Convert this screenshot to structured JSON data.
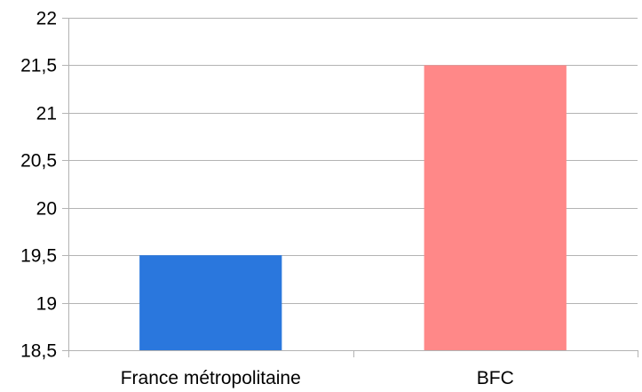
{
  "chart_data": {
    "type": "bar",
    "categories": [
      "France métropolitaine",
      "BFC"
    ],
    "values": [
      19.5,
      21.5
    ],
    "colors": [
      "#2a77dd",
      "#ff8888"
    ],
    "ylim": [
      18.5,
      22
    ],
    "yticks": [
      18.5,
      19,
      19.5,
      20,
      20.5,
      21,
      21.5,
      22
    ],
    "ytick_labels": [
      "18,5",
      "19",
      "19,5",
      "20",
      "20,5",
      "21",
      "21,5",
      "22"
    ],
    "grid": true,
    "gridline_color": "#b3b3b3",
    "title": "",
    "xlabel": "",
    "ylabel": ""
  }
}
